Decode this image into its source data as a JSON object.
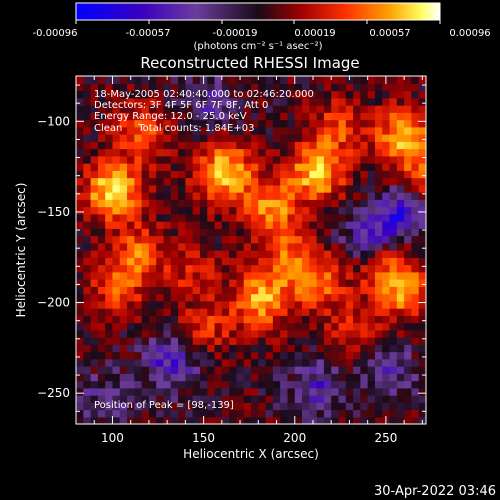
{
  "colorbar": {
    "ticks": [
      "-0.00096",
      "-0.00057",
      "-0.00019",
      "0.00019",
      "0.00057",
      "0.00096"
    ],
    "units": "(photons cm⁻² s⁻¹ asec⁻²)"
  },
  "title": "Reconstructed RHESSI Image",
  "info": {
    "time": "18-May-2005 02:40:40.000 to 02:46:20.000",
    "detectors": "Detectors: 3F 4F 5F 6F 7F 8F, Att 0",
    "energy": "Energy Range: 12.0 - 25.0 keV",
    "method": "Clean     Total counts: 1.84E+03",
    "peak": "Position of Peak = [98,-139]"
  },
  "footer_date": "30-Apr-2022 03:46",
  "chart_data": {
    "type": "heatmap",
    "xlabel": "Heliocentric X (arcsec)",
    "ylabel": "Heliocentric Y (arcsec)",
    "xlim": [
      80,
      272
    ],
    "ylim": [
      -267,
      -75
    ],
    "x_ticks": [
      100,
      150,
      200,
      250
    ],
    "y_ticks": [
      -100,
      -150,
      -200,
      -250
    ],
    "colormap": [
      "#0000ff",
      "#3a00c0",
      "#6c3c9c",
      "#1a0a1a",
      "#a00000",
      "#ff3000",
      "#ffa000",
      "#ffff60",
      "#ffffff"
    ],
    "value_range": [
      -0.00096,
      0.00096
    ],
    "peak_position": [
      98,
      -139
    ],
    "blobs": [
      {
        "x": 98,
        "y": -140,
        "amp": 0.00085
      },
      {
        "x": 113,
        "y": -108,
        "amp": 0.0005
      },
      {
        "x": 160,
        "y": -130,
        "amp": 0.0008
      },
      {
        "x": 185,
        "y": -150,
        "amp": 0.0006
      },
      {
        "x": 210,
        "y": -130,
        "amp": 0.00075
      },
      {
        "x": 222,
        "y": -105,
        "amp": 0.0004
      },
      {
        "x": 258,
        "y": -110,
        "amp": 0.0007
      },
      {
        "x": 268,
        "y": -135,
        "amp": 0.0005
      },
      {
        "x": 112,
        "y": -175,
        "amp": 0.0005
      },
      {
        "x": 100,
        "y": -195,
        "amp": 0.0004
      },
      {
        "x": 142,
        "y": -185,
        "amp": 0.0003
      },
      {
        "x": 180,
        "y": -200,
        "amp": 0.0007
      },
      {
        "x": 210,
        "y": -190,
        "amp": 0.0005
      },
      {
        "x": 195,
        "y": -175,
        "amp": 0.0004
      },
      {
        "x": 258,
        "y": -195,
        "amp": 0.0006
      },
      {
        "x": 247,
        "y": -180,
        "amp": 0.0004
      },
      {
        "x": 150,
        "y": -215,
        "amp": 0.00035
      },
      {
        "x": 230,
        "y": -215,
        "amp": 0.0003
      },
      {
        "x": 240,
        "y": -165,
        "amp": -0.0005
      },
      {
        "x": 260,
        "y": -150,
        "amp": -0.0006
      },
      {
        "x": 130,
        "y": -235,
        "amp": -0.00045
      },
      {
        "x": 210,
        "y": -250,
        "amp": -0.0004
      },
      {
        "x": 95,
        "y": -255,
        "amp": -0.0003
      },
      {
        "x": 250,
        "y": -240,
        "amp": -0.0003
      },
      {
        "x": 150,
        "y": -90,
        "amp": -0.0003
      }
    ]
  }
}
